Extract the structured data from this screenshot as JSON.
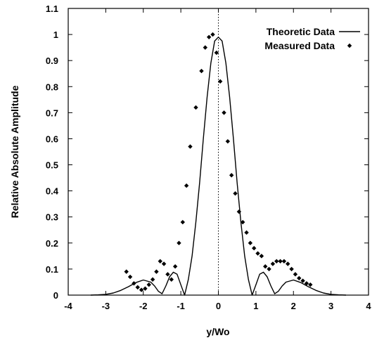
{
  "chart_data": {
    "type": "scatter",
    "title": "",
    "xlabel": "y/Wo",
    "ylabel": "Relative Absolute Amplitude",
    "xlim": [
      -4,
      4
    ],
    "ylim": [
      0,
      1.1
    ],
    "xticks": [
      -4,
      -3,
      -2,
      -1,
      0,
      1,
      2,
      3,
      4
    ],
    "yticks": [
      0,
      0.1,
      0.2,
      0.3,
      0.4,
      0.5,
      0.6,
      0.7,
      0.8,
      0.9,
      1,
      1.1
    ],
    "grid": false,
    "legend_position": "top-right",
    "reference_line_x": 0,
    "series": [
      {
        "name": "Theoretic Data",
        "kind": "line",
        "color": "#000000",
        "x": [
          -3.4,
          -3.2,
          -3.0,
          -2.8,
          -2.6,
          -2.4,
          -2.2,
          -2.0,
          -1.8,
          -1.7,
          -1.6,
          -1.5,
          -1.4,
          -1.3,
          -1.2,
          -1.1,
          -1.0,
          -0.9,
          -0.8,
          -0.7,
          -0.6,
          -0.5,
          -0.4,
          -0.3,
          -0.2,
          -0.1,
          0.0,
          0.1,
          0.2,
          0.3,
          0.4,
          0.5,
          0.6,
          0.7,
          0.8,
          0.9,
          1.0,
          1.1,
          1.2,
          1.3,
          1.4,
          1.5,
          1.6,
          1.7,
          1.8,
          2.0,
          2.2,
          2.4,
          2.6,
          2.8,
          3.0,
          3.2,
          3.4
        ],
        "y": [
          0.0,
          0.001,
          0.003,
          0.008,
          0.018,
          0.032,
          0.048,
          0.058,
          0.05,
          0.035,
          0.015,
          0.005,
          0.035,
          0.07,
          0.088,
          0.08,
          0.04,
          0.0,
          0.06,
          0.15,
          0.28,
          0.43,
          0.6,
          0.76,
          0.89,
          0.975,
          0.99,
          0.975,
          0.89,
          0.76,
          0.6,
          0.43,
          0.28,
          0.15,
          0.06,
          0.0,
          0.04,
          0.08,
          0.088,
          0.07,
          0.035,
          0.005,
          0.015,
          0.035,
          0.05,
          0.058,
          0.048,
          0.032,
          0.018,
          0.008,
          0.003,
          0.001,
          0.0
        ]
      },
      {
        "name": "Measured Data",
        "kind": "scatter",
        "color": "#000000",
        "x": [
          -2.45,
          -2.35,
          -2.25,
          -2.15,
          -2.05,
          -1.95,
          -1.85,
          -1.75,
          -1.65,
          -1.55,
          -1.45,
          -1.35,
          -1.25,
          -1.15,
          -1.05,
          -0.95,
          -0.85,
          -0.75,
          -0.6,
          -0.45,
          -0.35,
          -0.25,
          -0.15,
          -0.05,
          0.05,
          0.15,
          0.25,
          0.35,
          0.45,
          0.55,
          0.65,
          0.75,
          0.85,
          0.95,
          1.05,
          1.15,
          1.25,
          1.35,
          1.45,
          1.55,
          1.65,
          1.75,
          1.85,
          1.95,
          2.05,
          2.15,
          2.25,
          2.35,
          2.45
        ],
        "y": [
          0.09,
          0.07,
          0.045,
          0.03,
          0.02,
          0.025,
          0.04,
          0.06,
          0.09,
          0.13,
          0.12,
          0.08,
          0.06,
          0.11,
          0.2,
          0.28,
          0.42,
          0.57,
          0.72,
          0.86,
          0.95,
          0.99,
          1.0,
          0.93,
          0.82,
          0.7,
          0.59,
          0.46,
          0.39,
          0.32,
          0.28,
          0.24,
          0.2,
          0.18,
          0.16,
          0.15,
          0.11,
          0.1,
          0.12,
          0.13,
          0.13,
          0.13,
          0.12,
          0.1,
          0.08,
          0.065,
          0.055,
          0.045,
          0.04
        ]
      }
    ]
  }
}
